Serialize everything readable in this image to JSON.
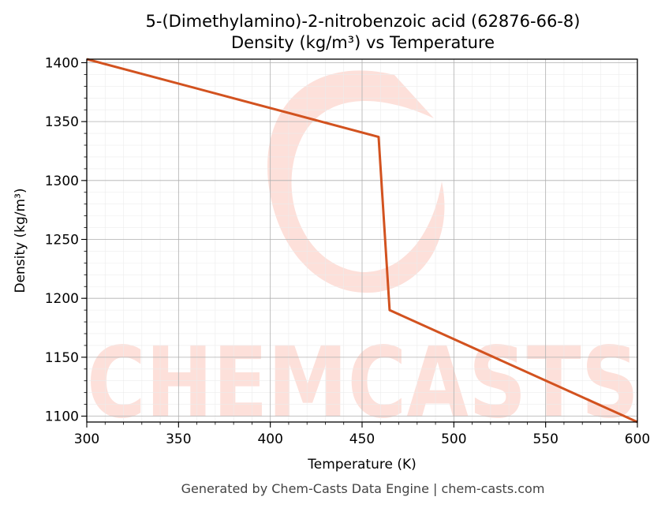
{
  "chart_data": {
    "type": "line",
    "title": "5-(Dimethylamino)-2-nitrobenzoic acid (62876-66-8)",
    "subtitle": "Density (kg/m³) vs Temperature",
    "xlabel": "Temperature (K)",
    "ylabel": "Density (kg/m³)",
    "xlim": [
      300,
      600
    ],
    "ylim": [
      1095,
      1403
    ],
    "xticks": [
      "300",
      "350",
      "400",
      "450",
      "500",
      "550",
      "600"
    ],
    "yticks": [
      "1100",
      "1150",
      "1200",
      "1250",
      "1300",
      "1350",
      "1400"
    ],
    "grid": true,
    "series": [
      {
        "color": "#d2521f",
        "points": [
          {
            "x": 300,
            "y": 1403
          },
          {
            "x": 459,
            "y": 1337
          },
          {
            "x": 465,
            "y": 1190
          },
          {
            "x": 600,
            "y": 1095
          }
        ]
      }
    ]
  },
  "watermark": "CHEMCASTS",
  "footer": "Generated by Chem-Casts Data Engine | chem-casts.com"
}
